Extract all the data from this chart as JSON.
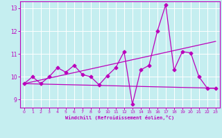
{
  "xlabel": "Windchill (Refroidissement éolien,°C)",
  "bg_color": "#c5eef0",
  "grid_color": "#ffffff",
  "line_color": "#bb00bb",
  "xlim_min": -0.5,
  "xlim_max": 23.5,
  "ylim_min": 8.65,
  "ylim_max": 13.3,
  "xticks": [
    0,
    1,
    2,
    3,
    4,
    5,
    6,
    7,
    8,
    9,
    10,
    11,
    12,
    13,
    14,
    15,
    16,
    17,
    18,
    19,
    20,
    21,
    22,
    23
  ],
  "yticks": [
    9,
    10,
    11,
    12,
    13
  ],
  "series_main_x": [
    0,
    1,
    2,
    3,
    4,
    5,
    6,
    7,
    8,
    9,
    10,
    11,
    12,
    13,
    14,
    15,
    16,
    17,
    18,
    19,
    20,
    21,
    22,
    23
  ],
  "series_main_y": [
    9.7,
    10.0,
    9.7,
    10.0,
    10.4,
    10.2,
    10.5,
    10.1,
    10.0,
    9.65,
    10.05,
    10.4,
    11.1,
    8.8,
    10.3,
    10.5,
    12.0,
    13.15,
    10.3,
    11.1,
    11.05,
    10.0,
    9.5,
    9.5
  ],
  "trend1_x": [
    0,
    23
  ],
  "trend1_y": [
    9.7,
    11.55
  ],
  "trend2_x": [
    0,
    23
  ],
  "trend2_y": [
    9.7,
    9.5
  ]
}
